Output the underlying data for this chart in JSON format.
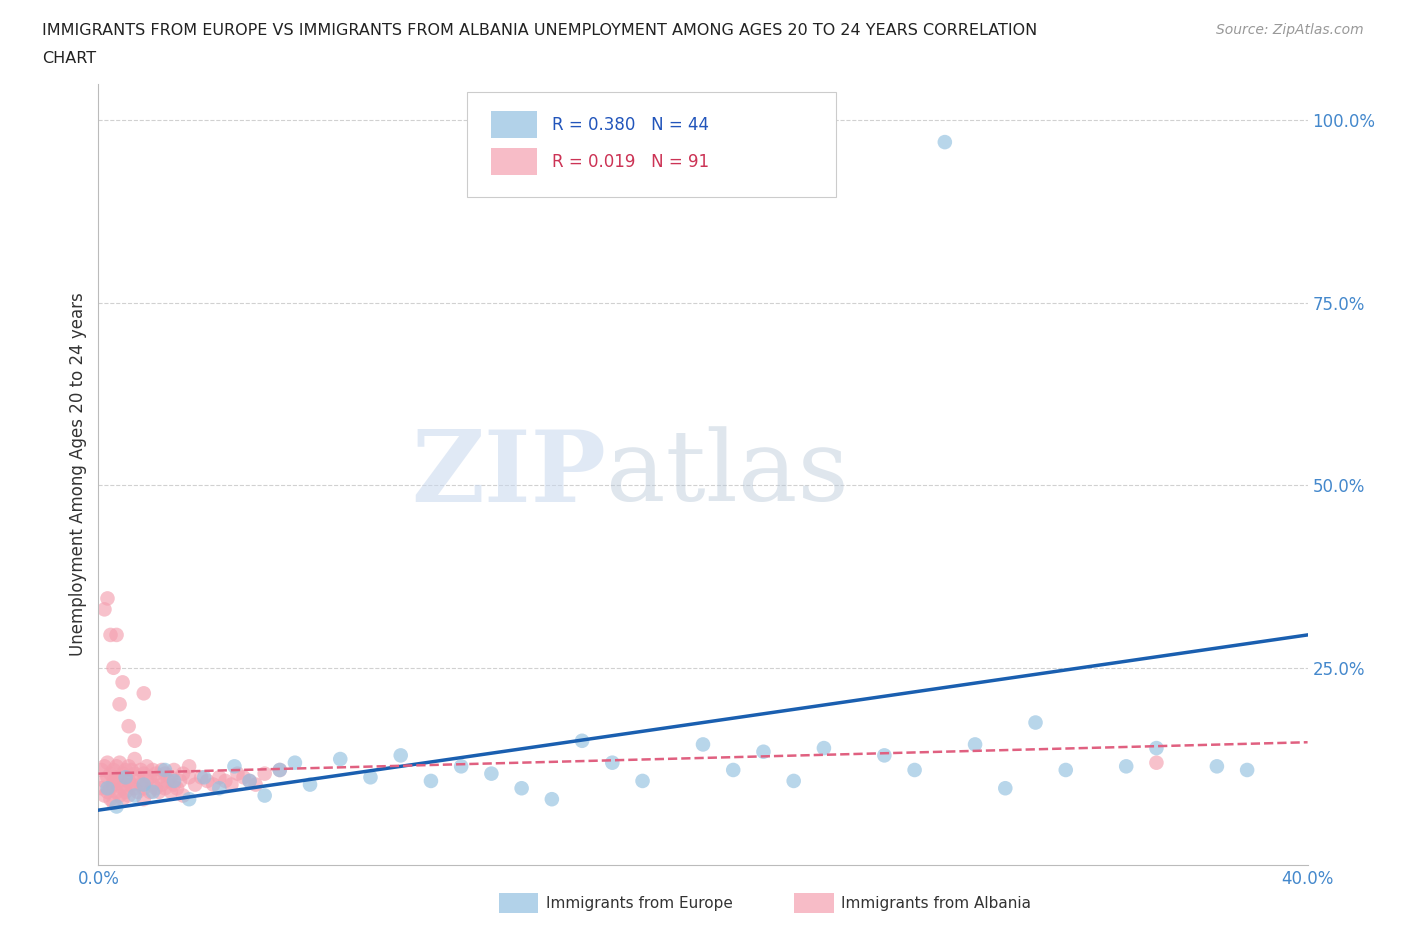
{
  "title_line1": "IMMIGRANTS FROM EUROPE VS IMMIGRANTS FROM ALBANIA UNEMPLOYMENT AMONG AGES 20 TO 24 YEARS CORRELATION",
  "title_line2": "CHART",
  "source": "Source: ZipAtlas.com",
  "ylabel": "Unemployment Among Ages 20 to 24 years",
  "xlim": [
    0.0,
    0.4
  ],
  "ylim": [
    -0.02,
    1.05
  ],
  "europe_color": "#92c0e0",
  "albania_color": "#f4a0b0",
  "europe_R": 0.38,
  "europe_N": 44,
  "albania_R": 0.019,
  "albania_N": 91,
  "europe_trend_color": "#1a5fb0",
  "albania_trend_color": "#e06080",
  "background_color": "#ffffff",
  "europe_trend_start_y": 0.055,
  "europe_trend_end_y": 0.295,
  "albania_trend_start_y": 0.105,
  "albania_trend_end_y": 0.148
}
